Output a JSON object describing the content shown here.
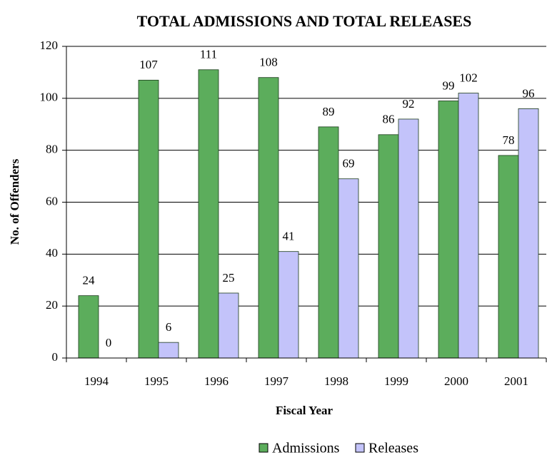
{
  "chart_data": {
    "type": "bar",
    "title": "TOTAL ADMISSIONS AND TOTAL RELEASES",
    "x_label": "Fiscal Year",
    "y_label": "No. of Offenders",
    "categories": [
      "1994",
      "1995",
      "1996",
      "1997",
      "1998",
      "1999",
      "2000",
      "2001"
    ],
    "series": [
      {
        "name": "Admissions",
        "color": "#5cad5c",
        "values": [
          24,
          107,
          111,
          108,
          89,
          86,
          99,
          78
        ]
      },
      {
        "name": "Releases",
        "color": "#c3c3fa",
        "values": [
          0,
          6,
          25,
          41,
          69,
          92,
          102,
          96
        ]
      }
    ],
    "ylim": [
      0,
      120
    ],
    "yticks": [
      0,
      20,
      40,
      60,
      80,
      100,
      120
    ],
    "grid": true,
    "legend": "bottom"
  }
}
